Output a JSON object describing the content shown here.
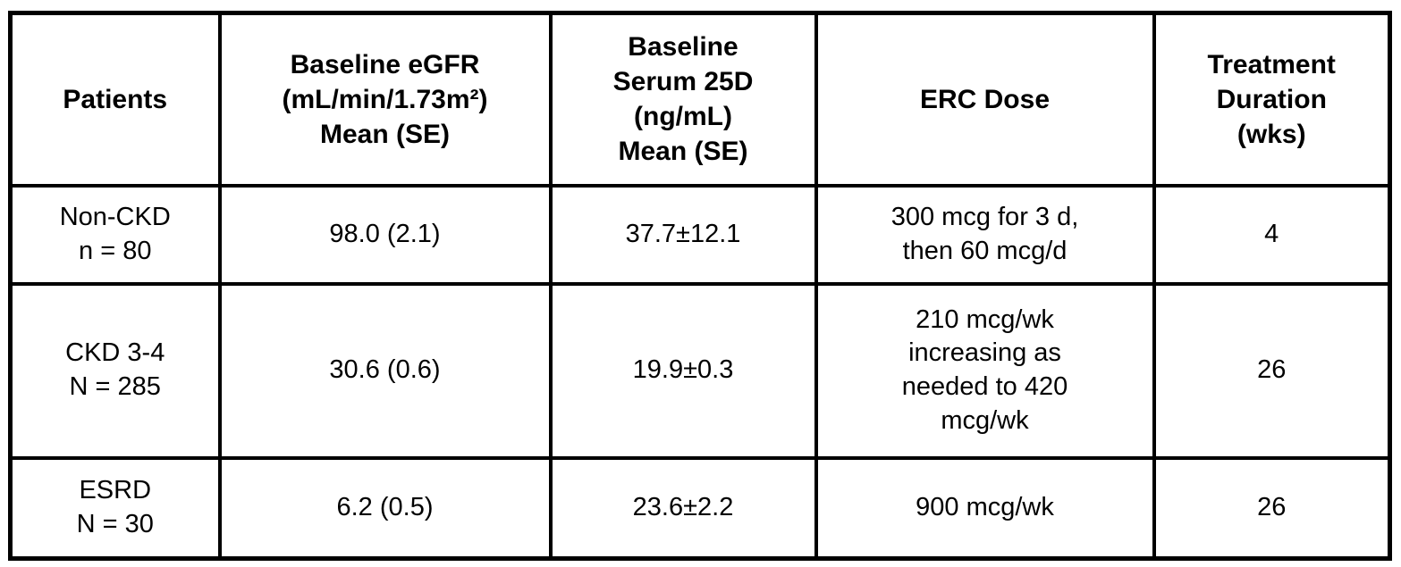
{
  "page": {
    "background_color": "#ffffff",
    "border_color": "#000000",
    "text_color": "#000000"
  },
  "table": {
    "header": {
      "patients": "Patients",
      "egfr": "Baseline eGFR\n(mL/min/1.73m²)\nMean (SE)",
      "serum25d": "Baseline\nSerum 25D\n(ng/mL)\nMean (SE)",
      "erc_dose": "ERC Dose",
      "duration": "Treatment\nDuration\n(wks)"
    },
    "rows": [
      {
        "patients": "Non-CKD\nn = 80",
        "egfr": "98.0 (2.1)",
        "serum25d": "37.7±12.1",
        "erc_dose": "300 mcg for 3 d,\nthen 60 mcg/d",
        "duration": "4"
      },
      {
        "patients": "CKD 3-4\nN = 285",
        "egfr": "30.6 (0.6)",
        "serum25d": "19.9±0.3",
        "erc_dose": "210 mcg/wk\nincreasing as\nneeded to 420\nmcg/wk",
        "duration": "26"
      },
      {
        "patients": "ESRD\nN = 30",
        "egfr": "6.2 (0.5)",
        "serum25d": "23.6±2.2",
        "erc_dose": "900 mcg/wk",
        "duration": "26"
      }
    ]
  }
}
